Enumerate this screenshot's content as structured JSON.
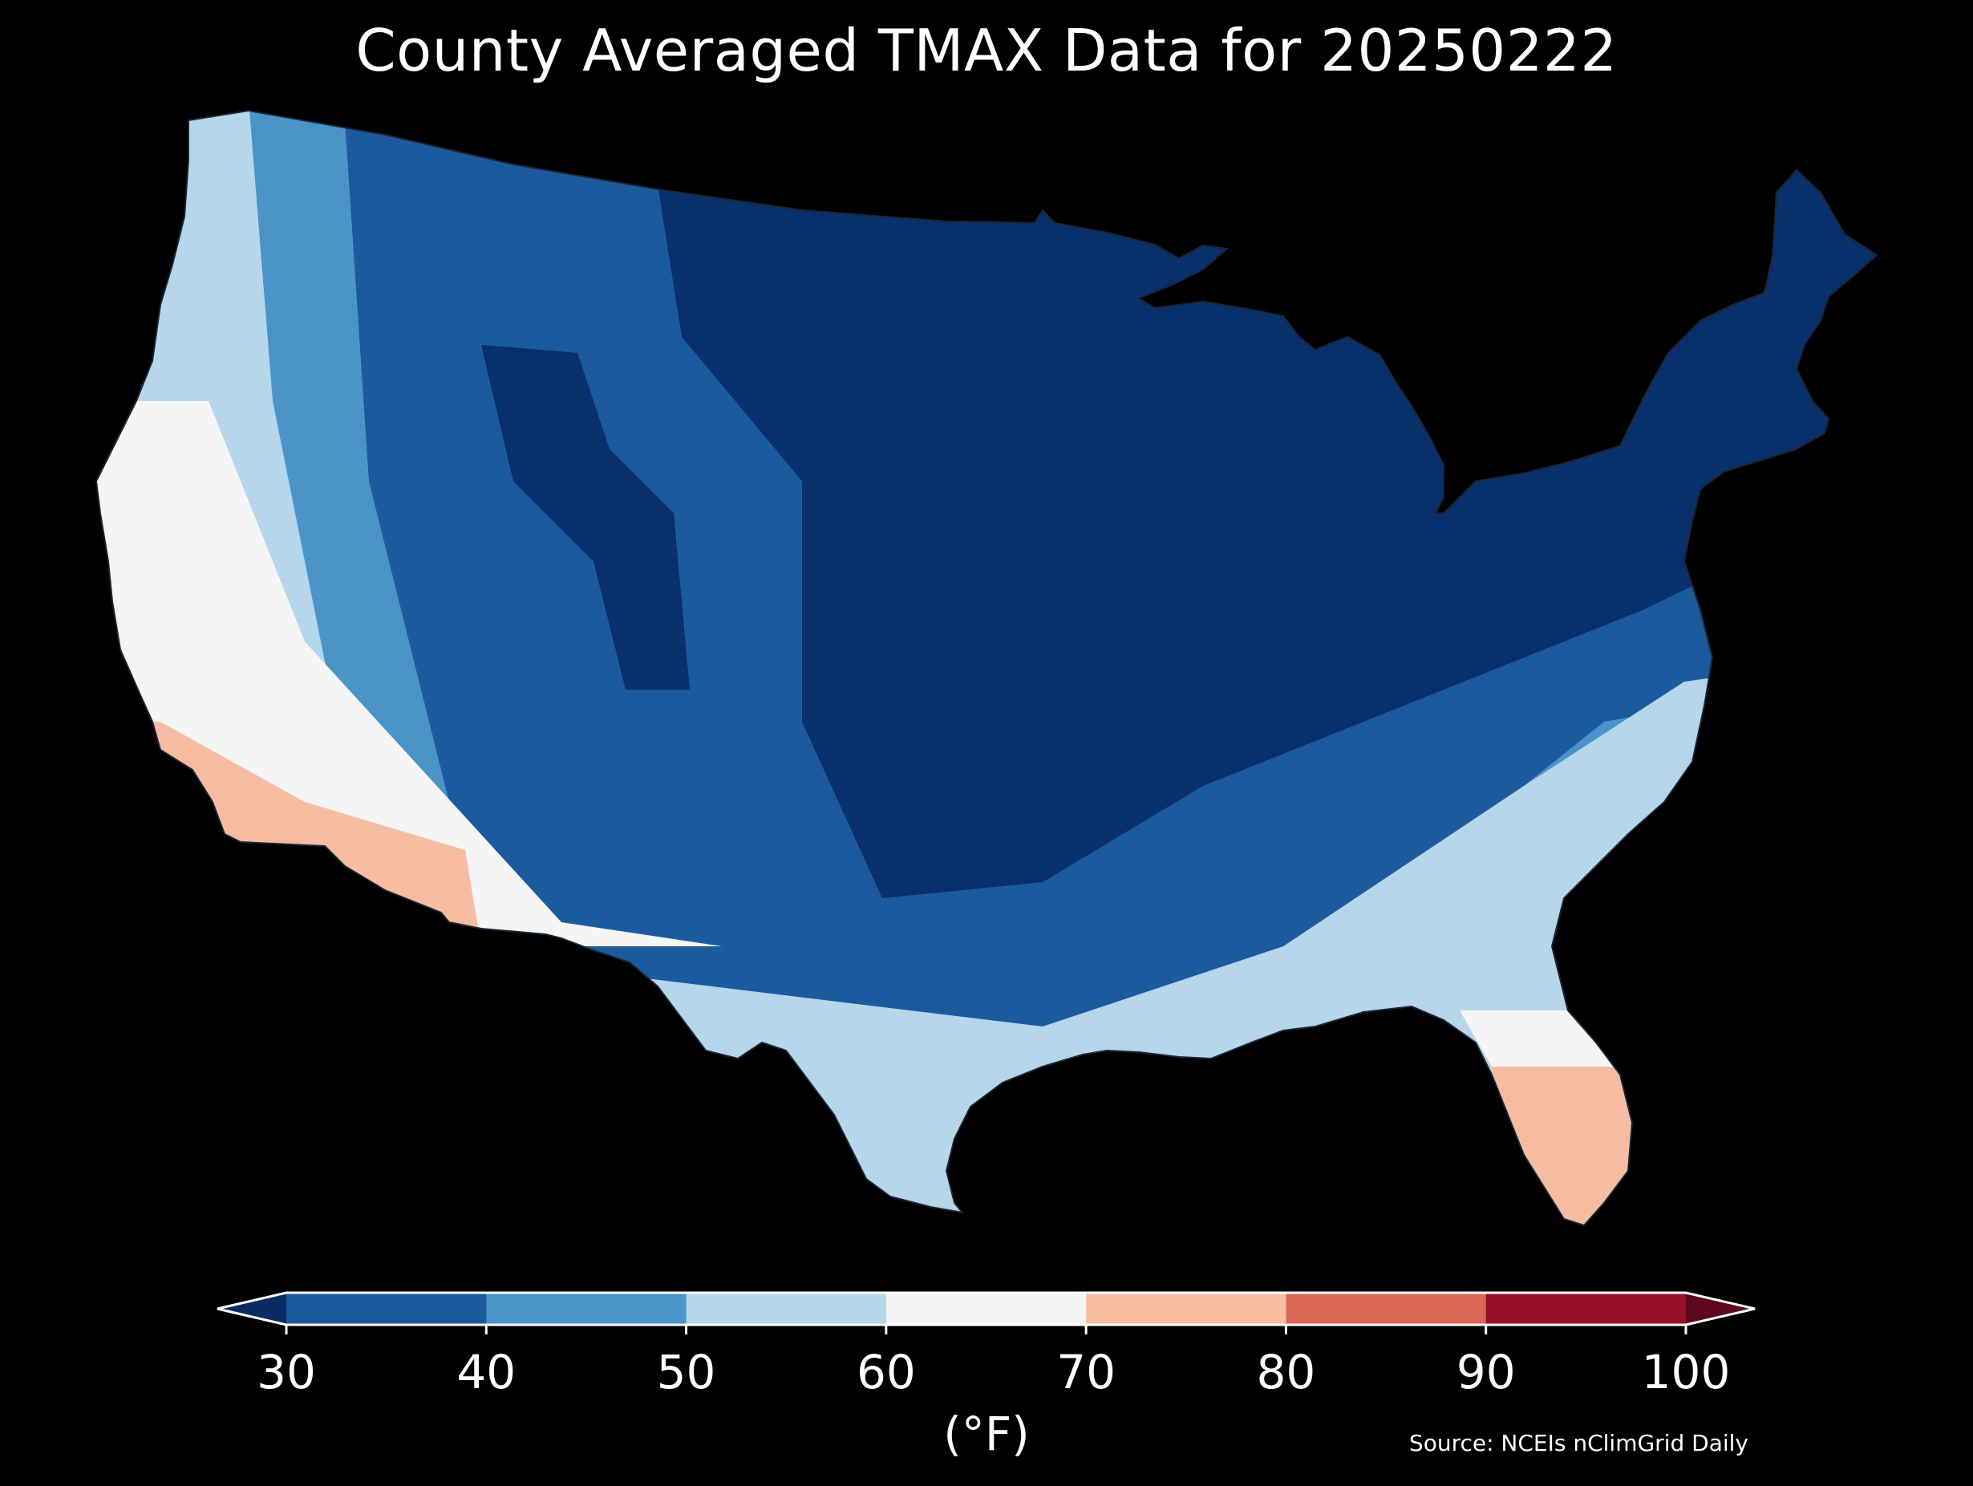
{
  "title": "County Averaged TMAX Data for 20250222",
  "colorbar": {
    "ticks": [
      "30",
      "40",
      "50",
      "60",
      "70",
      "80",
      "90",
      "100"
    ],
    "units_label": "(°F)",
    "bins": [
      {
        "from": 30,
        "to": 40,
        "color": "#1c5a9e"
      },
      {
        "from": 40,
        "to": 50,
        "color": "#4a94c8"
      },
      {
        "from": 50,
        "to": 60,
        "color": "#b6d6ea"
      },
      {
        "from": 60,
        "to": 70,
        "color": "#f5f5f5"
      },
      {
        "from": 70,
        "to": 80,
        "color": "#f7bda3"
      },
      {
        "from": 80,
        "to": 90,
        "color": "#dc6756"
      },
      {
        "from": 90,
        "to": 100,
        "color": "#980f29"
      }
    ],
    "under_color": "#082c60",
    "over_color": "#5e0721"
  },
  "source": "Source: NCEIs nClimGrid Daily",
  "map": {
    "region": "Contiguous United States",
    "unit": "county",
    "background": "#000000",
    "land_colors": {
      "coldest": "#08306b",
      "cold": "#1c5a9e",
      "cool": "#4a94c8",
      "mild": "#b6d6ea",
      "neutral": "#f5f5f5",
      "warm": "#f7bda3"
    }
  }
}
